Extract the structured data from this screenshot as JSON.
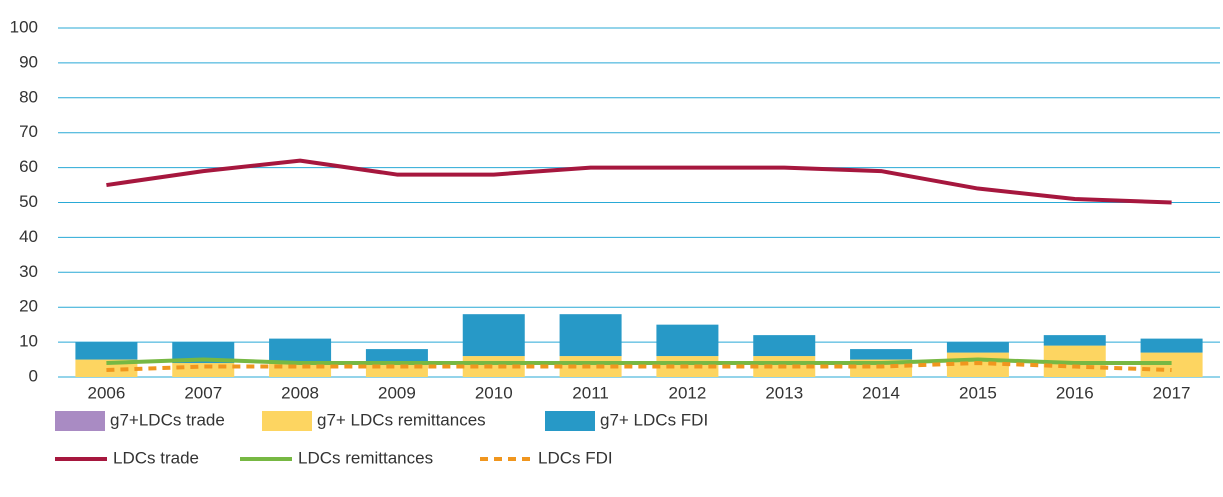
{
  "chart_data": {
    "type": "bar",
    "categories": [
      "2006",
      "2007",
      "2008",
      "2009",
      "2010",
      "2011",
      "2012",
      "2013",
      "2014",
      "2015",
      "2016",
      "2017"
    ],
    "series": [
      {
        "name": "g7+LDCs trade",
        "kind": "bar",
        "color": "#a98bc3",
        "values": [
          0,
          0,
          0,
          0,
          0,
          0,
          0,
          0,
          0,
          0,
          0,
          0
        ]
      },
      {
        "name": "g7+ LDCs remittances",
        "kind": "bar",
        "color": "#fdd561",
        "values": [
          5,
          4,
          4,
          4,
          6,
          6,
          6,
          6,
          5,
          7,
          9,
          7
        ]
      },
      {
        "name": "g7+ LDCs FDI",
        "kind": "bar",
        "color": "#2799c7",
        "values": [
          5,
          6,
          7,
          4,
          12,
          12,
          9,
          6,
          3,
          3,
          3,
          4
        ]
      },
      {
        "name": "LDCs trade",
        "kind": "line",
        "color": "#a6173e",
        "values": [
          55,
          59,
          62,
          58,
          58,
          60,
          60,
          60,
          59,
          54,
          51,
          50
        ]
      },
      {
        "name": "LDCs remittances",
        "kind": "line",
        "color": "#77b843",
        "values": [
          4,
          5,
          4,
          4,
          4,
          4,
          4,
          4,
          4,
          5,
          4,
          4
        ]
      },
      {
        "name": "LDCs FDI",
        "kind": "line",
        "color": "#f0961e",
        "dashed": true,
        "values": [
          2,
          3,
          3,
          3,
          3,
          3,
          3,
          3,
          3,
          4,
          3,
          2
        ]
      }
    ],
    "ylim": [
      0,
      100
    ],
    "yticks": [
      0,
      10,
      20,
      30,
      40,
      50,
      60,
      70,
      80,
      90,
      100
    ],
    "grid": true,
    "grid_color": "#29a9d6"
  }
}
